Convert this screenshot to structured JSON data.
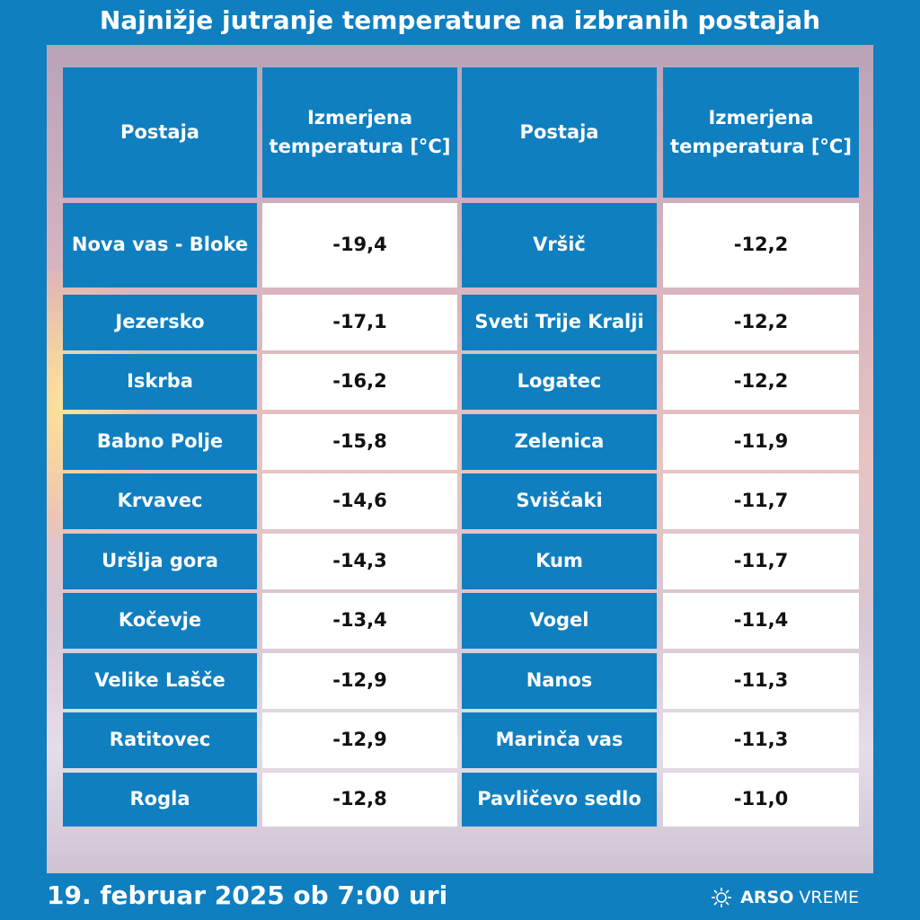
{
  "title": "Najnižje jutranje temperature na izbranih postajah",
  "table": {
    "header": [
      "Postaja",
      "Izmerjena temperatura [°C]",
      "Postaja",
      "Izmerjena temperatura [°C]"
    ],
    "rows": [
      [
        "Nova vas - Bloke",
        "-19,4",
        "Vršič",
        "-12,2"
      ],
      [
        "Jezersko",
        "-17,1",
        "Sveti Trije Kralji",
        "-12,2"
      ],
      [
        "Iskrba",
        "-16,2",
        "Logatec",
        "-12,2"
      ],
      [
        "Babno Polje",
        "-15,8",
        "Zelenica",
        "-11,9"
      ],
      [
        "Krvavec",
        "-14,6",
        "Sviščaki",
        "-11,7"
      ],
      [
        "Uršlja gora",
        "-14,3",
        "Kum",
        "-11,7"
      ],
      [
        "Kočevje",
        "-13,4",
        "Vogel",
        "-11,4"
      ],
      [
        "Velike Lašče",
        "-12,9",
        "Nanos",
        "-11,3"
      ],
      [
        "Ratitovec",
        "-12,9",
        "Marinča vas",
        "-11,3"
      ],
      [
        "Rogla",
        "-12,8",
        "Pavličevo sedlo",
        "-11,0"
      ]
    ]
  },
  "footer": {
    "date": "19. februar 2025 ob 7:00 uri",
    "brand": "ARSO",
    "product": "VREME"
  }
}
